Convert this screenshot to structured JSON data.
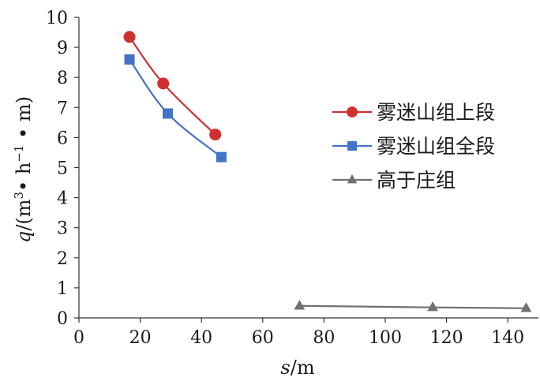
{
  "chart_data": {
    "type": "line",
    "xlabel": "s/m",
    "ylabel": "q/(m³•h⁻¹•m)",
    "xlim": [
      0,
      150
    ],
    "ylim": [
      0,
      10
    ],
    "x_ticks": [
      "0",
      "20",
      "40",
      "60",
      "80",
      "100",
      "120",
      "140"
    ],
    "y_ticks": [
      "0",
      "1",
      "2",
      "3",
      "4",
      "5",
      "6",
      "7",
      "8",
      "9",
      "10"
    ],
    "grid": false,
    "legend_position": "right",
    "series": [
      {
        "name": "雾迷山组上段",
        "color": "#d03030",
        "marker": "circle",
        "x": [
          16.5,
          27.5,
          44.5
        ],
        "y": [
          9.35,
          7.8,
          6.1
        ]
      },
      {
        "name": "雾迷山组全段",
        "color": "#4472c4",
        "marker": "square",
        "x": [
          16.5,
          29,
          46.5
        ],
        "y": [
          8.6,
          6.8,
          5.35
        ]
      },
      {
        "name": "高于庄组",
        "color": "#707070",
        "marker": "triangle",
        "x": [
          72,
          115.5,
          146
        ],
        "y": [
          0.4,
          0.35,
          0.32
        ]
      }
    ]
  }
}
